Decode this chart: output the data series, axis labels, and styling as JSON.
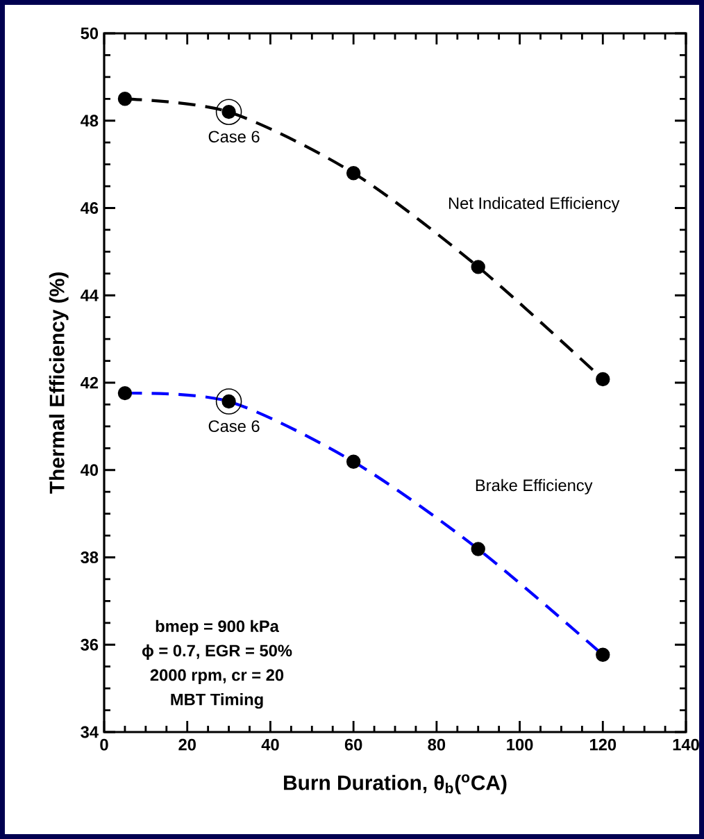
{
  "chart_data": {
    "type": "line",
    "xlabel": "Burn Duration, θ$_{b}$($^{o}$CA)",
    "ylabel": "Thermal Efficiency (%)",
    "x": [
      5,
      30,
      60,
      90,
      120
    ],
    "series": [
      {
        "name": "Net Indicated Efficiency",
        "color": "#000000",
        "values": [
          48.5,
          48.2,
          46.8,
          44.65,
          42.08
        ]
      },
      {
        "name": "Brake Efficiency",
        "color": "#0000ff",
        "values": [
          41.76,
          41.57,
          40.19,
          38.19,
          35.77
        ]
      }
    ],
    "annotations": [
      {
        "text": "Case 6",
        "x": 30,
        "y": 48.2
      },
      {
        "text": "Case 6",
        "x": 30,
        "y": 41.57
      },
      "bmep = 900 kPa",
      "ϕ = 0.7, EGR = 50%",
      "2000 rpm, cr = 20",
      "MBT Timing"
    ],
    "xlim": [
      0,
      140
    ],
    "xticks": [
      0,
      20,
      40,
      60,
      80,
      100,
      120,
      140
    ],
    "ylim": [
      34,
      50
    ],
    "yticks": [
      34,
      36,
      38,
      40,
      42,
      44,
      46,
      48,
      50
    ],
    "grid": false,
    "marker": "circle",
    "line_style": "dashed"
  }
}
